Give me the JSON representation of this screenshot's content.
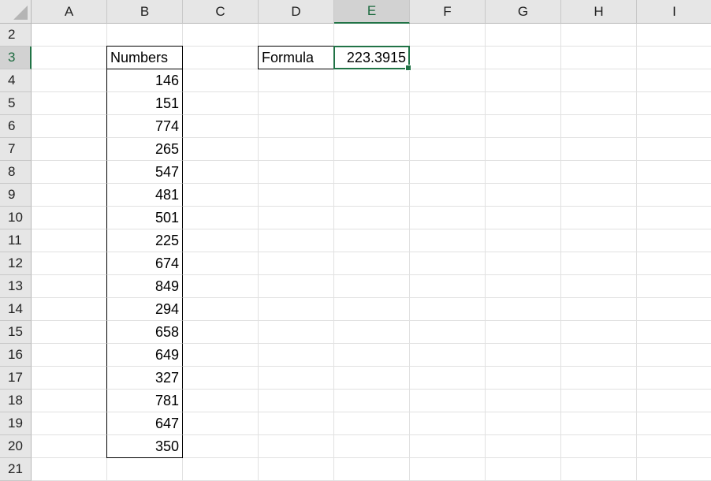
{
  "sheet": {
    "columns": [
      "A",
      "B",
      "C",
      "D",
      "E",
      "F",
      "G",
      "H",
      "I"
    ],
    "rows": [
      2,
      3,
      4,
      5,
      6,
      7,
      8,
      9,
      10,
      11,
      12,
      13,
      14,
      15,
      16,
      17,
      18,
      19,
      20,
      21
    ],
    "selected_cell": "E3",
    "accent_color": "#217346",
    "cells": {
      "B3": "Numbers",
      "B4": "146",
      "B5": "151",
      "B6": "774",
      "B7": "265",
      "B8": "547",
      "B9": "481",
      "B10": "501",
      "B11": "225",
      "B12": "674",
      "B13": "849",
      "B14": "294",
      "B15": "658",
      "B16": "649",
      "B17": "327",
      "B18": "781",
      "B19": "647",
      "B20": "350",
      "D3": "Formula",
      "E3": "223.3915"
    }
  }
}
